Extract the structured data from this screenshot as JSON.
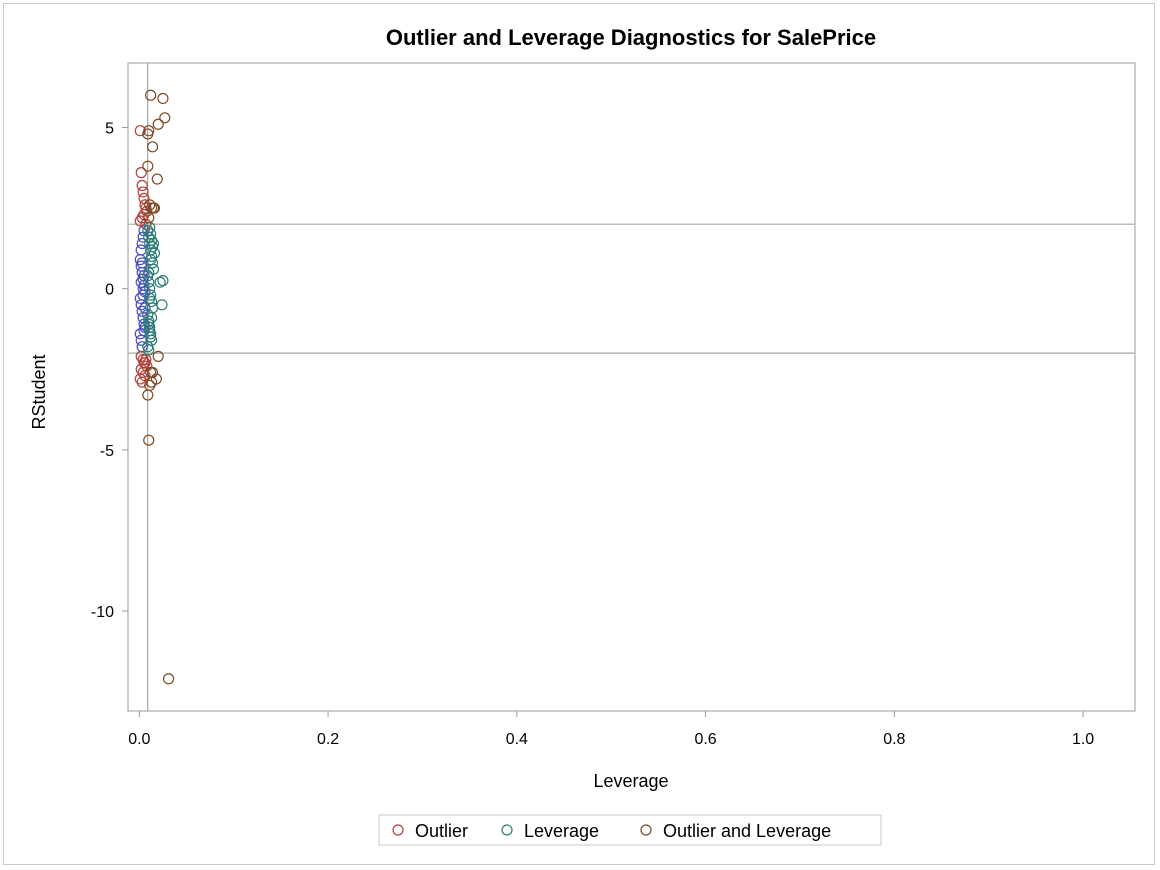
{
  "chart_data": {
    "type": "scatter",
    "title": "Outlier and Leverage Diagnostics for SalePrice",
    "xlabel": "Leverage",
    "ylabel": "RStudent",
    "xlim": [
      -0.012,
      1.055
    ],
    "ylim": [
      -13.1,
      7.0
    ],
    "xticks": [
      "0.0",
      "0.2",
      "0.4",
      "0.6",
      "0.8",
      "1.0"
    ],
    "yticks": [
      "5",
      "0",
      "-5",
      "-10"
    ],
    "xtick_values": [
      0.0,
      0.2,
      0.4,
      0.6,
      0.8,
      1.0
    ],
    "ytick_values": [
      5,
      0,
      -5,
      -10
    ],
    "reference_lines": {
      "y": [
        2,
        -2
      ],
      "x": [
        0.0088
      ]
    },
    "grid": false,
    "legend_position": "bottom",
    "colors": {
      "normal": "#4a4ec0",
      "outlier": "#b5403a",
      "leverage": "#2a7c73",
      "outlier_and_leverage": "#7d4a23",
      "reference": "#a6a6a6",
      "axis": "#999999"
    },
    "series": [
      {
        "name": "",
        "key": "normal",
        "x": [
          0.001,
          0.002,
          0.003,
          0.004,
          0.005,
          0.006,
          0.001,
          0.002,
          0.003,
          0.004,
          0.005,
          0.006,
          0.002,
          0.003,
          0.004,
          0.005,
          0.001,
          0.002,
          0.003,
          0.004,
          0.005,
          0.006,
          0.003,
          0.004,
          0.002,
          0.005
        ],
        "y": [
          0.9,
          0.7,
          0.5,
          0.3,
          0.1,
          -0.1,
          -0.3,
          -0.5,
          -0.7,
          -0.9,
          -1.1,
          -1.2,
          1.2,
          1.4,
          1.6,
          1.8,
          -1.4,
          -1.6,
          -1.8,
          0.0,
          0.4,
          -0.6,
          0.8,
          -0.2,
          0.2,
          -1.3
        ]
      },
      {
        "name": "Outlier",
        "key": "outlier",
        "x": [
          0.001,
          0.002,
          0.003,
          0.004,
          0.005,
          0.006,
          0.007,
          0.008,
          0.001,
          0.003,
          0.005,
          0.007,
          0.002,
          0.004,
          0.006,
          0.008,
          0.002,
          0.004,
          0.006,
          0.001,
          0.003,
          0.005,
          0.007
        ],
        "y": [
          4.9,
          3.6,
          3.2,
          3.0,
          2.8,
          2.6,
          2.5,
          2.4,
          2.1,
          2.2,
          2.3,
          2.0,
          -2.1,
          -2.2,
          -2.3,
          -2.4,
          -2.5,
          -2.6,
          -2.7,
          -2.8,
          -2.9,
          -2.3,
          -2.2
        ]
      },
      {
        "name": "Leverage",
        "key": "leverage",
        "x": [
          0.009,
          0.01,
          0.011,
          0.012,
          0.013,
          0.014,
          0.015,
          0.009,
          0.01,
          0.011,
          0.012,
          0.013,
          0.014,
          0.009,
          0.01,
          0.011,
          0.012,
          0.013,
          0.009,
          0.01,
          0.011,
          0.012,
          0.013,
          0.014,
          0.01,
          0.011,
          0.012,
          0.022,
          0.025,
          0.024,
          0.015,
          0.016,
          0.012,
          0.013,
          0.01,
          0.011
        ],
        "y": [
          1.8,
          1.6,
          1.4,
          1.2,
          1.0,
          0.8,
          0.6,
          0.4,
          0.2,
          0.0,
          -0.2,
          -0.4,
          -0.6,
          -0.8,
          -1.0,
          -1.2,
          -1.4,
          -1.6,
          -1.8,
          -1.9,
          1.9,
          1.7,
          1.5,
          1.3,
          -1.1,
          -1.3,
          -1.5,
          0.2,
          0.25,
          -0.5,
          1.4,
          1.1,
          0.9,
          -0.9,
          0.5,
          -0.3
        ]
      },
      {
        "name": "Outlier and Leverage",
        "key": "outlier_and_leverage",
        "x": [
          0.012,
          0.025,
          0.027,
          0.02,
          0.01,
          0.009,
          0.014,
          0.019,
          0.009,
          0.011,
          0.013,
          0.015,
          0.016,
          0.01,
          0.012,
          0.014,
          0.02,
          0.018,
          0.011,
          0.013,
          0.009,
          0.01,
          0.031
        ],
        "y": [
          6.0,
          5.9,
          5.3,
          5.1,
          4.9,
          4.8,
          4.4,
          3.4,
          3.8,
          2.6,
          2.5,
          2.5,
          2.5,
          2.2,
          -2.6,
          -2.6,
          -2.1,
          -2.8,
          -3.0,
          -2.9,
          -3.3,
          -4.7,
          -12.1
        ]
      }
    ]
  }
}
